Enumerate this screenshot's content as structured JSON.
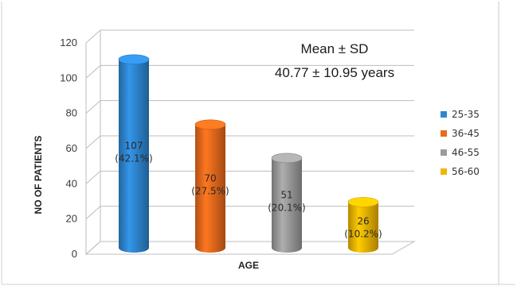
{
  "chart_data": {
    "type": "bar",
    "categories": [
      "25-35",
      "36-45",
      "46-55",
      "56-60"
    ],
    "values": [
      107,
      70,
      51,
      26
    ],
    "data_labels": [
      [
        "107",
        "(42.1%)"
      ],
      [
        "70",
        "(27.5%)"
      ],
      [
        "51",
        "(20.1%)"
      ],
      [
        "26",
        "(10.2%)"
      ]
    ],
    "title": "",
    "xlabel": "AGE",
    "ylabel": "NO OF PATIENTS",
    "ylim": [
      0,
      120
    ],
    "yticks": [
      0,
      20,
      40,
      60,
      80,
      100,
      120
    ],
    "grid": true,
    "legend_position": "right",
    "colors": [
      "#2e86d1",
      "#ea6a1c",
      "#9b9b9b",
      "#f2b600"
    ],
    "annotation": {
      "line1": "Mean ± SD",
      "line2": "40.77 ± 10.95 years"
    }
  }
}
